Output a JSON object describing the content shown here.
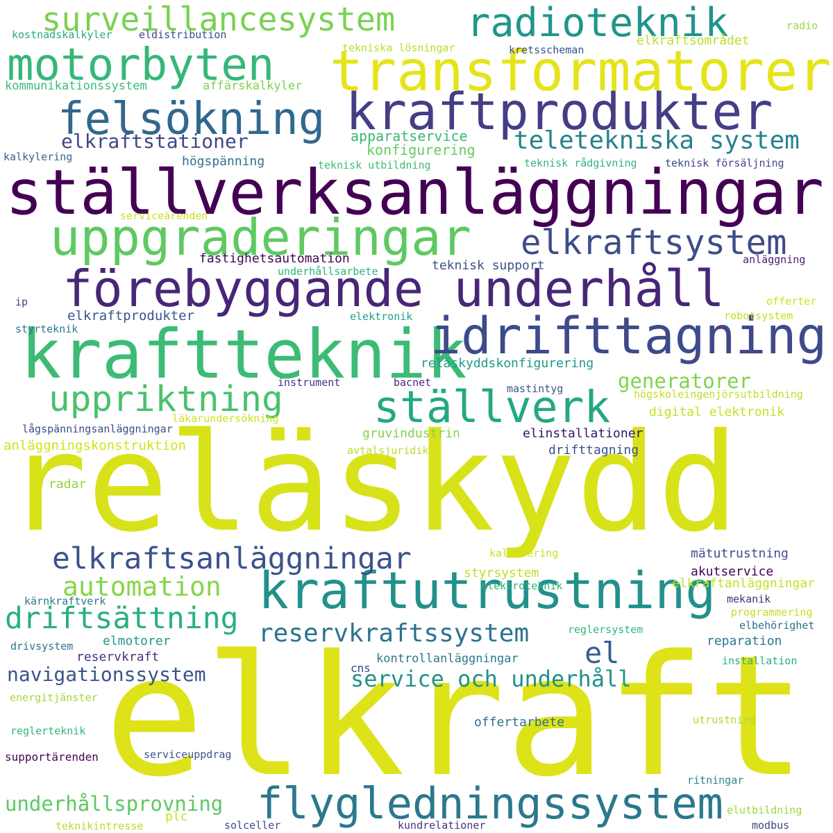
{
  "words": [
    {
      "text": "reläskydd",
      "color": "#d8e219"
    },
    {
      "text": "elkraft",
      "color": "#dde318"
    },
    {
      "text": "ställverksanläggningar",
      "color": "#440154"
    },
    {
      "text": "transformatorer",
      "color": "#e5e419"
    },
    {
      "text": "kraftteknik",
      "color": "#3cbb75"
    },
    {
      "text": "förebyggande underhåll",
      "color": "#482677"
    },
    {
      "text": "kraftprodukter",
      "color": "#433e85"
    },
    {
      "text": "uppgraderingar",
      "color": "#5ec962"
    },
    {
      "text": "kraftutrustning",
      "color": "#21918c"
    },
    {
      "text": "idrifttagning",
      "color": "#3e4a89"
    },
    {
      "text": "flygledningssystem",
      "color": "#2a788e"
    },
    {
      "text": "motorbyten",
      "color": "#35b779"
    },
    {
      "text": "surveillancesystem",
      "color": "#7ad151"
    },
    {
      "text": "radioteknik",
      "color": "#1f968b"
    },
    {
      "text": "felsökning",
      "color": "#31688e"
    },
    {
      "text": "ställverk",
      "color": "#23a883"
    },
    {
      "text": "uppriktning",
      "color": "#4ac16d"
    },
    {
      "text": "elkraftsanläggningar",
      "color": "#3b528b"
    },
    {
      "text": "elkraftsystem",
      "color": "#3e4c8a"
    },
    {
      "text": "driftsättning",
      "color": "#29af7f"
    },
    {
      "text": "teletekniska system",
      "color": "#26828e"
    },
    {
      "text": "automation",
      "color": "#86d549"
    },
    {
      "text": "reservkraftssystem",
      "color": "#2c728e"
    },
    {
      "text": "el",
      "color": "#355f8d"
    },
    {
      "text": "service och underhåll",
      "color": "#20928c"
    },
    {
      "text": "navigationssystem",
      "color": "#3a548c"
    },
    {
      "text": "underhållsprovning",
      "color": "#5cc863"
    },
    {
      "text": "elkraftstationer",
      "color": "#3f4788"
    },
    {
      "text": "generatorer",
      "color": "#7fd34e"
    },
    {
      "text": "konfigurering",
      "color": "#65cb5e"
    },
    {
      "text": "apparatservice",
      "color": "#37b878"
    },
    {
      "text": "högspänning",
      "color": "#2e6f8e"
    },
    {
      "text": "kostnadskalkyler",
      "color": "#25ab82"
    },
    {
      "text": "eldistribution",
      "color": "#3e4989"
    },
    {
      "text": "kommunikationssystem",
      "color": "#3aba76"
    },
    {
      "text": "affärskalkyler",
      "color": "#7ad151"
    },
    {
      "text": "tekniska lösningar",
      "color": "#b5de2b"
    },
    {
      "text": "kretsscheman",
      "color": "#3b528b"
    },
    {
      "text": "elkraftsområdet",
      "color": "#bddf26"
    },
    {
      "text": "radio",
      "color": "#98d83e"
    },
    {
      "text": "kalkylering",
      "color": "#33638d"
    },
    {
      "text": "teknisk utbildning",
      "color": "#3dbc74"
    },
    {
      "text": "teknisk rådgivning",
      "color": "#2fb47c"
    },
    {
      "text": "teknisk försäljning",
      "color": "#404688"
    },
    {
      "text": "serviceärenden",
      "color": "#c8e020"
    },
    {
      "text": "fastighetsautomation",
      "color": "#3e0751"
    },
    {
      "text": "teknisk support",
      "color": "#3b528b"
    },
    {
      "text": "underhållsarbete",
      "color": "#2db27d"
    },
    {
      "text": "anläggning",
      "color": "#481d6f"
    },
    {
      "text": "ip",
      "color": "#3e4989"
    },
    {
      "text": "elkraftprodukter",
      "color": "#39558c"
    },
    {
      "text": "elektronik",
      "color": "#1fa188"
    },
    {
      "text": "offerter",
      "color": "#d0e11c"
    },
    {
      "text": "styrteknik",
      "color": "#2a788e"
    },
    {
      "text": "robotsystem",
      "color": "#c2df23"
    },
    {
      "text": "reläskyddskonfigurering",
      "color": "#1f9a8a"
    },
    {
      "text": "instrument",
      "color": "#46307e"
    },
    {
      "text": "bacnet",
      "color": "#482878"
    },
    {
      "text": "mastintyg",
      "color": "#3b528b"
    },
    {
      "text": "högskoleingenjörsutbildning",
      "color": "#c0df25"
    },
    {
      "text": "digital elektronik",
      "color": "#c7e020"
    },
    {
      "text": "lågspänningsanläggningar",
      "color": "#3e4a89"
    },
    {
      "text": "läkarundersökning",
      "color": "#d0e11c"
    },
    {
      "text": "anläggningskonstruktion",
      "color": "#d2e21b"
    },
    {
      "text": "gruvindustrin",
      "color": "#84d44b"
    },
    {
      "text": "elinstallationer",
      "color": "#2e1a63"
    },
    {
      "text": "drifttagning",
      "color": "#3b528b"
    },
    {
      "text": "avtalsjuridik",
      "color": "#bade28"
    },
    {
      "text": "radar",
      "color": "#8ed645"
    },
    {
      "text": "mätutrustning",
      "color": "#3d4d8a"
    },
    {
      "text": "kalibrering",
      "color": "#cae11f"
    },
    {
      "text": "akutservice",
      "color": "#440154"
    },
    {
      "text": "styrsystem",
      "color": "#bade28"
    },
    {
      "text": "elkraftanläggningar",
      "color": "#c5e021"
    },
    {
      "text": "elektroteknik",
      "color": "#2db27d"
    },
    {
      "text": "kärnkraftverk",
      "color": "#2a788e"
    },
    {
      "text": "mekanik",
      "color": "#472d7b"
    },
    {
      "text": "programmering",
      "color": "#c2df23"
    },
    {
      "text": "elbehörighet",
      "color": "#2e6e8e"
    },
    {
      "text": "elmotorer",
      "color": "#1f988b"
    },
    {
      "text": "reglersystem",
      "color": "#32b67a"
    },
    {
      "text": "reparation",
      "color": "#2a788e"
    },
    {
      "text": "drivsystem",
      "color": "#2c728e"
    },
    {
      "text": "reservkraft",
      "color": "#46337e"
    },
    {
      "text": "kontrollanläggningar",
      "color": "#2a788e"
    },
    {
      "text": "installation",
      "color": "#28ae80"
    },
    {
      "text": "cns",
      "color": "#3e4989"
    },
    {
      "text": "energitjänster",
      "color": "#a2da37"
    },
    {
      "text": "utrustning",
      "color": "#addc30"
    },
    {
      "text": "offertarbete",
      "color": "#2c718e"
    },
    {
      "text": "reglerteknik",
      "color": "#34b679"
    },
    {
      "text": "supportärenden",
      "color": "#440154"
    },
    {
      "text": "serviceuppdrag",
      "color": "#3b528b"
    },
    {
      "text": "ritningar",
      "color": "#24868e"
    },
    {
      "text": "elutbildning",
      "color": "#9bd93c"
    },
    {
      "text": "teknikintresse",
      "color": "#b5de2b"
    },
    {
      "text": "plc",
      "color": "#c5e021"
    },
    {
      "text": "solceller",
      "color": "#3e4a89"
    },
    {
      "text": "kundrelationer",
      "color": "#46337e"
    },
    {
      "text": "modbus",
      "color": "#404588"
    }
  ]
}
